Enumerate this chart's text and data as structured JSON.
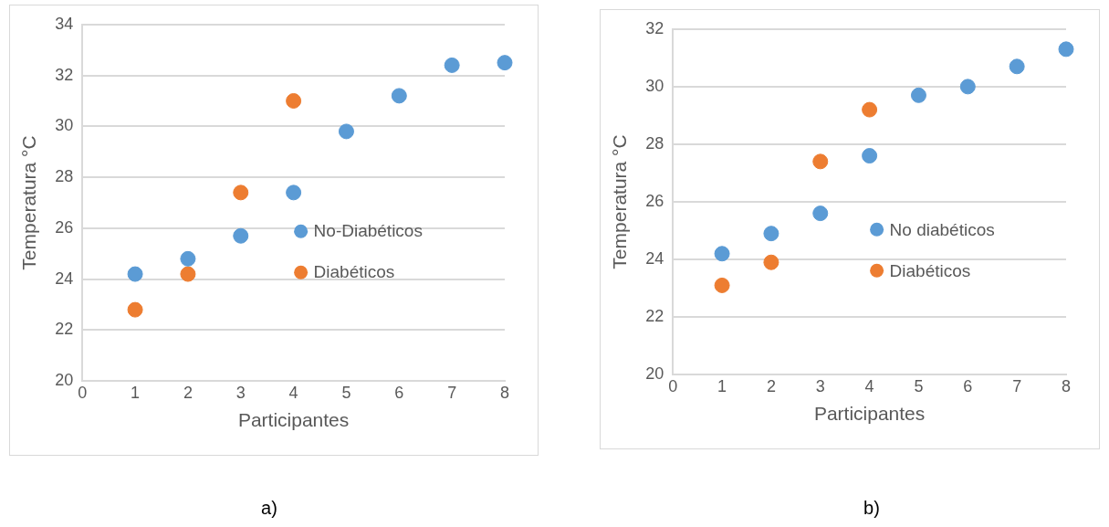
{
  "chart_data": [
    {
      "type": "scatter",
      "xlabel": "Participantes",
      "ylabel": "Temperatura °C",
      "xlim": [
        0,
        8
      ],
      "xticks": [
        0,
        1,
        2,
        3,
        4,
        5,
        6,
        7,
        8
      ],
      "ylim": [
        20,
        34
      ],
      "yticks": [
        20,
        22,
        24,
        26,
        28,
        30,
        32,
        34
      ],
      "grid": "y",
      "legend": "right",
      "marker": "circle",
      "annotations": [
        "a)"
      ],
      "series": [
        {
          "name": "No-Diabéticos",
          "color": "#5b9bd5",
          "x": [
            1,
            2,
            3,
            4,
            5,
            6,
            7,
            8
          ],
          "values": [
            24.2,
            24.8,
            25.7,
            27.4,
            29.8,
            31.2,
            32.4,
            32.5
          ]
        },
        {
          "name": "Diabéticos",
          "color": "#ed7d31",
          "x": [
            1,
            2,
            3,
            4
          ],
          "values": [
            22.8,
            24.2,
            27.4,
            31.0
          ]
        }
      ]
    },
    {
      "type": "scatter",
      "xlabel": "Participantes",
      "ylabel": "Temperatura °C",
      "xlim": [
        0,
        8
      ],
      "xticks": [
        0,
        1,
        2,
        3,
        4,
        5,
        6,
        7,
        8
      ],
      "ylim": [
        20,
        32
      ],
      "yticks": [
        20,
        22,
        24,
        26,
        28,
        30,
        32
      ],
      "grid": "y",
      "legend": "right",
      "marker": "circle",
      "annotations": [
        "b)"
      ],
      "series": [
        {
          "name": "No diabéticos",
          "color": "#5b9bd5",
          "x": [
            1,
            2,
            3,
            4,
            5,
            6,
            7,
            8
          ],
          "values": [
            24.2,
            24.9,
            25.6,
            27.6,
            29.7,
            30.0,
            30.7,
            31.3
          ]
        },
        {
          "name": "Diabéticos",
          "color": "#ed7d31",
          "x": [
            1,
            2,
            3,
            4
          ],
          "values": [
            23.1,
            23.9,
            27.4,
            29.2
          ]
        }
      ]
    }
  ]
}
